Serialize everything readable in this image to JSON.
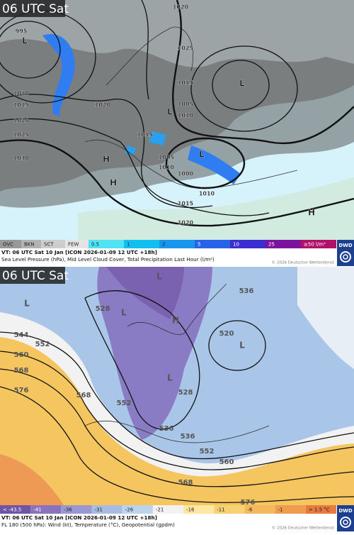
{
  "panels": [
    {
      "time_label": "06 UTC Sat",
      "map_labels": [
        "1020",
        "995",
        "1010",
        "1015",
        "1020",
        "1025",
        "1030",
        "1020",
        "1015",
        "1025",
        "1015",
        "1005",
        "1010",
        "1005",
        "1010",
        "1000",
        "1010",
        "1015",
        "1020",
        "L",
        "L",
        "L",
        "L",
        "H",
        "H",
        "H"
      ],
      "legend": [
        "OVC",
        "BKN",
        "SCT",
        "FEW",
        "0.5",
        "1",
        "2",
        "5",
        "10",
        "25",
        "≥50 l/m²"
      ],
      "caption_lines": [
        "VT: 06 UTC Sat   10 Jan [ICON 2026-01-09 12 UTC +18h]",
        "Sea Level Pressure (hPa), Mid Level Cloud Cover, Total Precipitation Last Hour (l/m²)"
      ],
      "copyright": "© 2026 Deutscher Wetterdienst",
      "logo": "DWD"
    },
    {
      "time_label": "06 UTC Sat",
      "map_labels": [
        "544",
        "552",
        "560",
        "568",
        "576",
        "528",
        "536",
        "520",
        "528",
        "536",
        "536",
        "552",
        "560",
        "568",
        "576",
        "552",
        "568",
        "L",
        "L",
        "H",
        "L",
        "L",
        "L"
      ],
      "legend": [
        "< -43.5",
        "-41",
        "-36",
        "-31",
        "-26",
        "-21",
        "-16",
        "-11",
        "-6",
        "-1",
        "> 1.5 °C"
      ],
      "caption_lines": [
        "VT: 06 UTC Sat   10 Jan [ICON 2026-01-09 12 UTC +18h]",
        "FL 180 (500 hPa): Wind (kt), Temperature (°C), Geopotential (gpdm)"
      ],
      "copyright": "© 2026 Deutscher Wetterdienst",
      "logo": "DWD"
    }
  ]
}
